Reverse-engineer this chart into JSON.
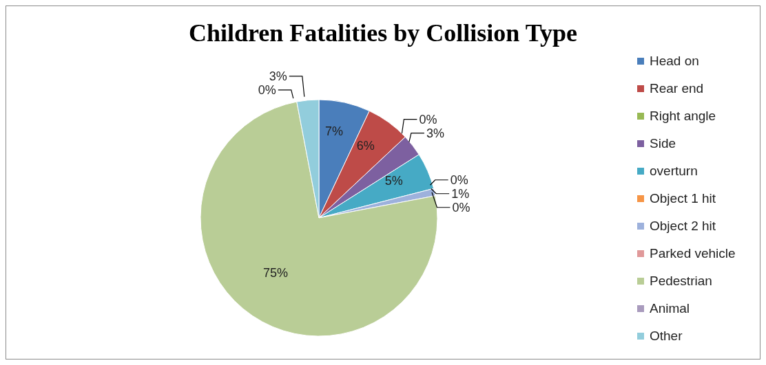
{
  "chart_data": {
    "type": "pie",
    "title": "Children Fatalities by Collision Type",
    "categories": [
      "Head on",
      "Rear end",
      "Right angle",
      "Side",
      "overturn",
      "Object 1 hit",
      "Object 2 hit",
      "Parked vehicle",
      "Pedestrian",
      "Animal",
      "Other"
    ],
    "values": [
      7,
      6,
      0,
      3,
      5,
      0,
      1,
      0,
      75,
      0,
      3
    ],
    "value_labels": [
      "7%",
      "6%",
      "0%",
      "3%",
      "5%",
      "0%",
      "1%",
      "0%",
      "75%",
      "0%",
      "3%"
    ],
    "colors": [
      "#4a7ebb",
      "#be4b48",
      "#98b954",
      "#7d60a0",
      "#46aac5",
      "#f69546",
      "#9db1dc",
      "#e0999a",
      "#b9cd96",
      "#a99bbd",
      "#92cddc"
    ],
    "legend": "right"
  }
}
